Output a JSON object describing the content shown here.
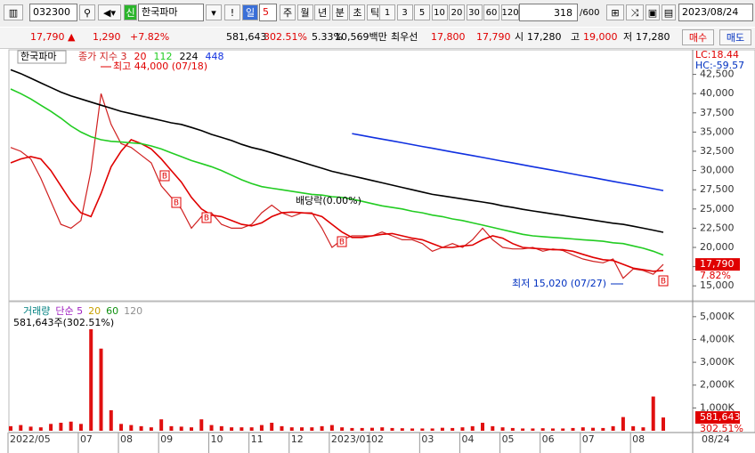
{
  "toolbar": {
    "code": "032300",
    "new_badge": "신",
    "name": "한국파마",
    "alert": "!",
    "period": "일",
    "period_count": "5",
    "periods": [
      "주",
      "월",
      "년",
      "분",
      "초",
      "틱"
    ],
    "counts": [
      "1",
      "3",
      "5",
      "10",
      "20",
      "30",
      "60",
      "120"
    ],
    "shown": "318",
    "total": "/600",
    "date": "2023/08/24"
  },
  "quote": {
    "price": "17,790",
    "direction": "▲",
    "change": "1,290",
    "change_rate": "+7.82%",
    "volume": "581,643",
    "volume_ratio": "302.51%",
    "turnover": "5.33%",
    "amount": "10,569백만",
    "best_quote": "최우선",
    "ask": "17,800",
    "bid": "17,790",
    "open_label": "시",
    "open": "17,280",
    "high_label": "고",
    "high": "19,000",
    "low_label": "저",
    "low": "17,280",
    "buy": "매수",
    "sell": "매도"
  },
  "chart_data": [
    {
      "type": "line",
      "title": "한국파마",
      "categories": [
        "2022/05",
        null,
        null,
        null,
        null,
        null,
        null,
        "07",
        null,
        null,
        null,
        "08",
        null,
        null,
        null,
        "09",
        null,
        null,
        null,
        null,
        "10",
        null,
        null,
        null,
        "11",
        null,
        null,
        null,
        "12",
        null,
        null,
        null,
        "2023/01",
        null,
        null,
        null,
        "02",
        null,
        null,
        null,
        null,
        "03",
        null,
        null,
        null,
        "04",
        null,
        null,
        null,
        "05",
        null,
        null,
        null,
        "06",
        null,
        null,
        null,
        "07",
        null,
        null,
        null,
        null,
        "08",
        null,
        null,
        null
      ],
      "end_label": "08/24",
      "series": [
        {
          "name": "종가 지수 3",
          "color": "#d02020",
          "values": [
            33000,
            32500,
            31500,
            29000,
            26000,
            23000,
            22500,
            23500,
            30000,
            40000,
            36000,
            33500,
            33000,
            32000,
            31000,
            28000,
            26500,
            25000,
            22500,
            24000,
            24500,
            23000,
            22500,
            22500,
            23000,
            24500,
            25500,
            24500,
            24000,
            24500,
            24500,
            22500,
            20000,
            21000,
            21500,
            21500,
            21500,
            22000,
            21500,
            21000,
            21000,
            20500,
            19500,
            20000,
            20500,
            20000,
            21000,
            22500,
            21000,
            20000,
            19800,
            19800,
            20000,
            19500,
            19800,
            19600,
            19000,
            18500,
            18200,
            18000,
            18500,
            16000,
            17200,
            17000,
            16500,
            17790
          ]
        },
        {
          "name": "20",
          "color": "#e00000",
          "values": [
            31000,
            31500,
            31800,
            31500,
            30000,
            28000,
            26000,
            24500,
            24000,
            27000,
            30500,
            32500,
            34000,
            33500,
            32800,
            31500,
            30000,
            28500,
            26500,
            25000,
            24200,
            24000,
            23500,
            23000,
            22800,
            23200,
            24000,
            24500,
            24600,
            24500,
            24400,
            24000,
            23000,
            22000,
            21300,
            21300,
            21500,
            21700,
            21800,
            21500,
            21200,
            21000,
            20500,
            20000,
            20000,
            20200,
            20300,
            21000,
            21500,
            21200,
            20500,
            20000,
            19900,
            19800,
            19700,
            19700,
            19500,
            19100,
            18700,
            18400,
            18300,
            17800,
            17300,
            17100,
            16900,
            17000
          ]
        },
        {
          "name": "112",
          "color": "#22cc22",
          "values": [
            40600,
            40000,
            39300,
            38500,
            37700,
            36800,
            35800,
            35000,
            34400,
            34000,
            33800,
            33700,
            33600,
            33500,
            33200,
            32800,
            32300,
            31800,
            31300,
            30900,
            30500,
            30000,
            29400,
            28800,
            28300,
            27900,
            27700,
            27500,
            27300,
            27100,
            26900,
            26800,
            26600,
            26500,
            26300,
            26000,
            25700,
            25400,
            25200,
            25000,
            24700,
            24500,
            24200,
            24000,
            23700,
            23500,
            23200,
            22900,
            22600,
            22300,
            22000,
            21700,
            21500,
            21400,
            21300,
            21200,
            21100,
            21000,
            20900,
            20800,
            20600,
            20500,
            20200,
            19900,
            19500,
            19000
          ]
        },
        {
          "name": "224",
          "color": "#000000",
          "values": [
            43100,
            42600,
            42000,
            41400,
            40800,
            40200,
            39700,
            39300,
            38900,
            38500,
            38100,
            37700,
            37400,
            37100,
            36800,
            36500,
            36200,
            36000,
            35600,
            35200,
            34700,
            34300,
            33900,
            33400,
            33000,
            32700,
            32300,
            31900,
            31500,
            31100,
            30700,
            30300,
            29900,
            29600,
            29300,
            29000,
            28700,
            28400,
            28100,
            27800,
            27500,
            27200,
            26900,
            26700,
            26500,
            26300,
            26100,
            25900,
            25700,
            25400,
            25200,
            24950,
            24750,
            24550,
            24350,
            24150,
            23950,
            23750,
            23550,
            23350,
            23150,
            23000,
            22750,
            22500,
            22250,
            21970
          ]
        },
        {
          "name": "448",
          "color": "#1030e0",
          "values": [
            null,
            null,
            null,
            null,
            null,
            null,
            null,
            null,
            null,
            null,
            null,
            null,
            null,
            null,
            null,
            null,
            null,
            null,
            null,
            null,
            null,
            null,
            null,
            null,
            null,
            null,
            null,
            null,
            null,
            null,
            null,
            null,
            null,
            null,
            34800,
            34560,
            34320,
            34090,
            33850,
            33610,
            33370,
            33130,
            32890,
            32650,
            32410,
            32180,
            31940,
            31700,
            31460,
            31220,
            30980,
            30740,
            30500,
            30270,
            30030,
            29790,
            29550,
            29310,
            29070,
            28830,
            28590,
            28350,
            28120,
            27880,
            27640,
            27400
          ]
        }
      ],
      "ylim": [
        13750,
        45000
      ],
      "yticks": [
        {
          "value": 15000,
          "label": "15,000"
        },
        {
          "value": 17500,
          "label": "17,500"
        },
        {
          "value": 20000,
          "label": "20,000"
        },
        {
          "value": 22500,
          "label": "22,500"
        },
        {
          "value": 25000,
          "label": "25,000"
        },
        {
          "value": 27500,
          "label": "27,500"
        },
        {
          "value": 30000,
          "label": "30,000"
        },
        {
          "value": 32500,
          "label": "32,500"
        },
        {
          "value": 35000,
          "label": "35,000"
        },
        {
          "value": 37500,
          "label": "37,500"
        },
        {
          "value": 40000,
          "label": "40,000"
        },
        {
          "value": 42500,
          "label": "42,500"
        }
      ],
      "lc": "LC:18.44",
      "hc": "HC:-59.57",
      "current_label": "17,790",
      "current_rate": "7.82%",
      "high_note": "최고 44,000 (07/18)",
      "low_note": "최저 15,020 (07/27)",
      "dividend_note": "배당락(0.00%)",
      "signal_label": "B"
    },
    {
      "type": "bar",
      "series": [
        {
          "name": "거래량",
          "color": "#e01010",
          "values": [
            200000,
            250000,
            180000,
            150000,
            300000,
            350000,
            400000,
            300000,
            4450000,
            3600000,
            900000,
            300000,
            250000,
            200000,
            150000,
            500000,
            200000,
            180000,
            150000,
            500000,
            250000,
            200000,
            150000,
            150000,
            150000,
            250000,
            350000,
            200000,
            150000,
            150000,
            150000,
            200000,
            250000,
            150000,
            120000,
            120000,
            130000,
            150000,
            120000,
            110000,
            100000,
            100000,
            100000,
            130000,
            120000,
            150000,
            200000,
            350000,
            200000,
            150000,
            120000,
            100000,
            100000,
            110000,
            100000,
            100000,
            120000,
            150000,
            130000,
            120000,
            200000,
            600000,
            200000,
            150000,
            1500000,
            581643
          ]
        }
      ],
      "ma_legend": [
        {
          "name": "단순 5",
          "color": "#a020c0"
        },
        {
          "name": "20",
          "color": "#c8a000"
        },
        {
          "name": "60",
          "color": "#109010"
        },
        {
          "name": "120",
          "color": "#909090"
        }
      ],
      "volume_note": "581,643주(302.51%)",
      "ylim": [
        0,
        5500000
      ],
      "yticks": [
        {
          "value": 1000000,
          "label": "1,000K"
        },
        {
          "value": 2000000,
          "label": "2,000K"
        },
        {
          "value": 3000000,
          "label": "3,000K"
        },
        {
          "value": 4000000,
          "label": "4,000K"
        },
        {
          "value": 5000000,
          "label": "5,000K"
        }
      ],
      "current_label": "581,643",
      "current_rate": "302.51%"
    }
  ]
}
